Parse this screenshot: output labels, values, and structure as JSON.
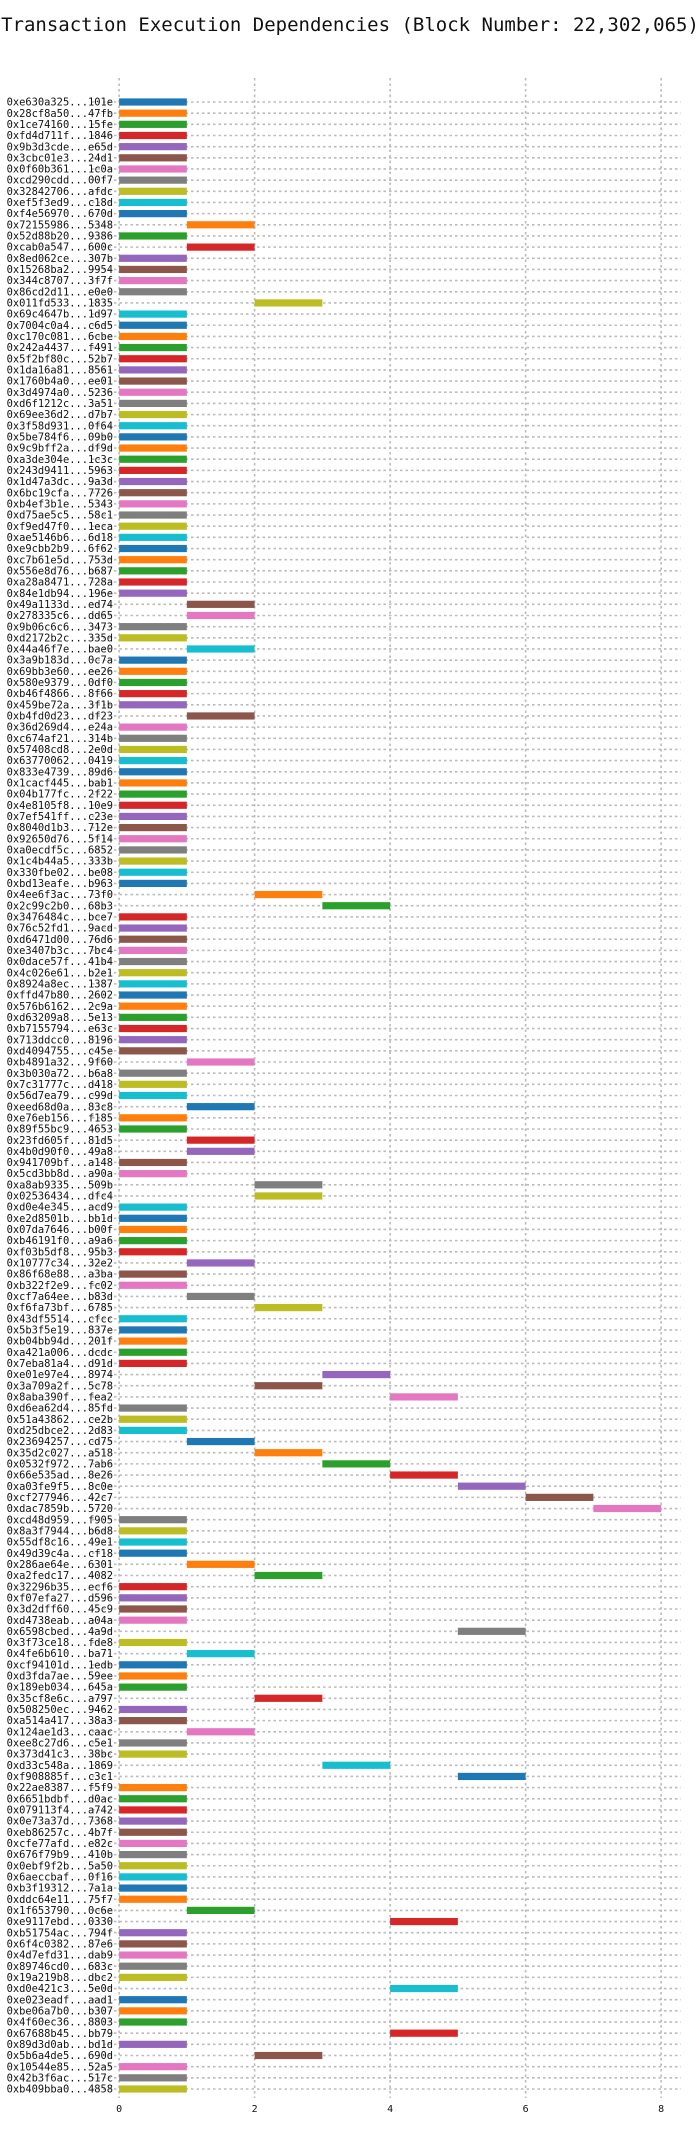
{
  "chart_data": {
    "type": "bar",
    "orientation": "horizontal-gantt",
    "title": "Transaction Execution Dependencies (Block Number: 22,302,065)",
    "xlabel": "",
    "ylabel": "",
    "xlim": [
      -0.4,
      8.5
    ],
    "xticks": [
      0,
      2,
      4,
      6,
      8
    ],
    "grid": true,
    "legend": "none",
    "palette": [
      "#1f77b4",
      "#ff7f0e",
      "#2ca02c",
      "#d62728",
      "#9467bd",
      "#8c564b",
      "#e377c2",
      "#7f7f7f",
      "#bcbd22",
      "#17becf"
    ],
    "transactions": [
      {
        "hash": "0xe630a325...101e",
        "start": 0,
        "end": 1
      },
      {
        "hash": "0x28cf8a50...47fb",
        "start": 0,
        "end": 1
      },
      {
        "hash": "0x1ce74160...15fe",
        "start": 0,
        "end": 1
      },
      {
        "hash": "0xfd4d711f...1846",
        "start": 0,
        "end": 1
      },
      {
        "hash": "0x9b3d3cde...e65d",
        "start": 0,
        "end": 1
      },
      {
        "hash": "0x3cbc01e3...24d1",
        "start": 0,
        "end": 1
      },
      {
        "hash": "0x0f60b361...1c0a",
        "start": 0,
        "end": 1
      },
      {
        "hash": "0xcd290cdd...00f7",
        "start": 0,
        "end": 1
      },
      {
        "hash": "0x32842706...afdc",
        "start": 0,
        "end": 1
      },
      {
        "hash": "0xef5f3ed9...c18d",
        "start": 0,
        "end": 1
      },
      {
        "hash": "0xf4e56970...670d",
        "start": 0,
        "end": 1
      },
      {
        "hash": "0x72155986...5348",
        "start": 1,
        "end": 2
      },
      {
        "hash": "0x52d88b20...9386",
        "start": 0,
        "end": 1
      },
      {
        "hash": "0xcab0a547...600c",
        "start": 1,
        "end": 2
      },
      {
        "hash": "0x8ed062ce...307b",
        "start": 0,
        "end": 1
      },
      {
        "hash": "0x15268ba2...9954",
        "start": 0,
        "end": 1
      },
      {
        "hash": "0x344c8707...3f7f",
        "start": 0,
        "end": 1
      },
      {
        "hash": "0x86cd2d11...e0e0",
        "start": 0,
        "end": 1
      },
      {
        "hash": "0x011fd533...1835",
        "start": 2,
        "end": 3
      },
      {
        "hash": "0x69c4647b...1d97",
        "start": 0,
        "end": 1
      },
      {
        "hash": "0x7004c0a4...c6d5",
        "start": 0,
        "end": 1
      },
      {
        "hash": "0xc170c081...6cbe",
        "start": 0,
        "end": 1
      },
      {
        "hash": "0x242a4437...f491",
        "start": 0,
        "end": 1
      },
      {
        "hash": "0x5f2bf80c...52b7",
        "start": 0,
        "end": 1
      },
      {
        "hash": "0x1da16a81...8561",
        "start": 0,
        "end": 1
      },
      {
        "hash": "0x1760b4a0...ee01",
        "start": 0,
        "end": 1
      },
      {
        "hash": "0x3d4974a0...5236",
        "start": 0,
        "end": 1
      },
      {
        "hash": "0xd6f1212c...3a51",
        "start": 0,
        "end": 1
      },
      {
        "hash": "0x69ee36d2...d7b7",
        "start": 0,
        "end": 1
      },
      {
        "hash": "0x3f58d931...0f64",
        "start": 0,
        "end": 1
      },
      {
        "hash": "0x5be784f6...09b0",
        "start": 0,
        "end": 1
      },
      {
        "hash": "0x9c9bff2a...df9d",
        "start": 0,
        "end": 1
      },
      {
        "hash": "0xa3de304e...1c3c",
        "start": 0,
        "end": 1
      },
      {
        "hash": "0x243d9411...5963",
        "start": 0,
        "end": 1
      },
      {
        "hash": "0x1d47a3dc...9a3d",
        "start": 0,
        "end": 1
      },
      {
        "hash": "0x6bc19cfa...7726",
        "start": 0,
        "end": 1
      },
      {
        "hash": "0xb4ef3b1e...5343",
        "start": 0,
        "end": 1
      },
      {
        "hash": "0xd75ae5c5...58c1",
        "start": 0,
        "end": 1
      },
      {
        "hash": "0xf9ed47f0...1eca",
        "start": 0,
        "end": 1
      },
      {
        "hash": "0xae5146b6...6d18",
        "start": 0,
        "end": 1
      },
      {
        "hash": "0xe9cbb2b9...6f62",
        "start": 0,
        "end": 1
      },
      {
        "hash": "0xc7b61e5d...753d",
        "start": 0,
        "end": 1
      },
      {
        "hash": "0x556e8d76...b687",
        "start": 0,
        "end": 1
      },
      {
        "hash": "0xa28a8471...728a",
        "start": 0,
        "end": 1
      },
      {
        "hash": "0x84e1db94...196e",
        "start": 0,
        "end": 1
      },
      {
        "hash": "0x49a1133d...ed74",
        "start": 1,
        "end": 2
      },
      {
        "hash": "0x278335c6...dd65",
        "start": 1,
        "end": 2
      },
      {
        "hash": "0x9b06c6c6...3473",
        "start": 0,
        "end": 1
      },
      {
        "hash": "0xd2172b2c...335d",
        "start": 0,
        "end": 1
      },
      {
        "hash": "0x44a46f7e...bae0",
        "start": 1,
        "end": 2
      },
      {
        "hash": "0x3a9b183d...0c7a",
        "start": 0,
        "end": 1
      },
      {
        "hash": "0x69bb3e60...ee26",
        "start": 0,
        "end": 1
      },
      {
        "hash": "0x580e9379...0df0",
        "start": 0,
        "end": 1
      },
      {
        "hash": "0xb46f4866...8f66",
        "start": 0,
        "end": 1
      },
      {
        "hash": "0x459be72a...3f1b",
        "start": 0,
        "end": 1
      },
      {
        "hash": "0xb4fd0d23...df23",
        "start": 1,
        "end": 2
      },
      {
        "hash": "0x36d269d4...e24a",
        "start": 0,
        "end": 1
      },
      {
        "hash": "0xc674af21...314b",
        "start": 0,
        "end": 1
      },
      {
        "hash": "0x57408cd8...2e0d",
        "start": 0,
        "end": 1
      },
      {
        "hash": "0x63770062...0419",
        "start": 0,
        "end": 1
      },
      {
        "hash": "0x833e4739...89d6",
        "start": 0,
        "end": 1
      },
      {
        "hash": "0x1cacf445...bab1",
        "start": 0,
        "end": 1
      },
      {
        "hash": "0x04b177fc...2f22",
        "start": 0,
        "end": 1
      },
      {
        "hash": "0x4e8105f8...10e9",
        "start": 0,
        "end": 1
      },
      {
        "hash": "0x7ef541ff...c23e",
        "start": 0,
        "end": 1
      },
      {
        "hash": "0x8040d1b3...712e",
        "start": 0,
        "end": 1
      },
      {
        "hash": "0x92650d76...5f14",
        "start": 0,
        "end": 1
      },
      {
        "hash": "0xa0ecdf5c...6852",
        "start": 0,
        "end": 1
      },
      {
        "hash": "0x1c4b44a5...333b",
        "start": 0,
        "end": 1
      },
      {
        "hash": "0x330fbe02...be08",
        "start": 0,
        "end": 1
      },
      {
        "hash": "0xbd13eafe...b963",
        "start": 0,
        "end": 1
      },
      {
        "hash": "0x4ee6f3ac...73f0",
        "start": 2,
        "end": 3
      },
      {
        "hash": "0x2c99c2b0...68b3",
        "start": 3,
        "end": 4
      },
      {
        "hash": "0x3476484c...bce7",
        "start": 0,
        "end": 1
      },
      {
        "hash": "0x76c52fd1...9acd",
        "start": 0,
        "end": 1
      },
      {
        "hash": "0xd6471d00...76d6",
        "start": 0,
        "end": 1
      },
      {
        "hash": "0xe3407b3c...7bc4",
        "start": 0,
        "end": 1
      },
      {
        "hash": "0x0dace57f...41b4",
        "start": 0,
        "end": 1
      },
      {
        "hash": "0x4c026e61...b2e1",
        "start": 0,
        "end": 1
      },
      {
        "hash": "0x8924a8ec...1387",
        "start": 0,
        "end": 1
      },
      {
        "hash": "0xffd47b80...2602",
        "start": 0,
        "end": 1
      },
      {
        "hash": "0x576b6162...2c9a",
        "start": 0,
        "end": 1
      },
      {
        "hash": "0xd63209a8...5e13",
        "start": 0,
        "end": 1
      },
      {
        "hash": "0xb7155794...e63c",
        "start": 0,
        "end": 1
      },
      {
        "hash": "0x713ddcc0...8196",
        "start": 0,
        "end": 1
      },
      {
        "hash": "0xd4094755...c45e",
        "start": 0,
        "end": 1
      },
      {
        "hash": "0xb4891a32...9f60",
        "start": 1,
        "end": 2
      },
      {
        "hash": "0x3b030a72...b6a8",
        "start": 0,
        "end": 1
      },
      {
        "hash": "0x7c31777c...d418",
        "start": 0,
        "end": 1
      },
      {
        "hash": "0x56d7ea79...c99d",
        "start": 0,
        "end": 1
      },
      {
        "hash": "0xeed68d0a...83c8",
        "start": 1,
        "end": 2
      },
      {
        "hash": "0xe76eb156...f185",
        "start": 0,
        "end": 1
      },
      {
        "hash": "0x89f55bc9...4653",
        "start": 0,
        "end": 1
      },
      {
        "hash": "0x23fd605f...81d5",
        "start": 1,
        "end": 2
      },
      {
        "hash": "0x4b0d90f0...49a8",
        "start": 1,
        "end": 2
      },
      {
        "hash": "0x941709bf...a148",
        "start": 0,
        "end": 1
      },
      {
        "hash": "0x5cd3bb8d...a90a",
        "start": 0,
        "end": 1
      },
      {
        "hash": "0xa8ab9335...509b",
        "start": 2,
        "end": 3
      },
      {
        "hash": "0x02536434...dfc4",
        "start": 2,
        "end": 3
      },
      {
        "hash": "0xd0e4e345...acd9",
        "start": 0,
        "end": 1
      },
      {
        "hash": "0xe2d8501b...bb1d",
        "start": 0,
        "end": 1
      },
      {
        "hash": "0x07da7646...b00f",
        "start": 0,
        "end": 1
      },
      {
        "hash": "0xb46191f0...a9a6",
        "start": 0,
        "end": 1
      },
      {
        "hash": "0xf03b5df8...95b3",
        "start": 0,
        "end": 1
      },
      {
        "hash": "0x10777c34...32e2",
        "start": 1,
        "end": 2
      },
      {
        "hash": "0x86f68e88...a3ba",
        "start": 0,
        "end": 1
      },
      {
        "hash": "0xb322f2e9...fc02",
        "start": 0,
        "end": 1
      },
      {
        "hash": "0xcf7a64ee...b83d",
        "start": 1,
        "end": 2
      },
      {
        "hash": "0xf6fa73bf...6785",
        "start": 2,
        "end": 3
      },
      {
        "hash": "0x43df5514...cfcc",
        "start": 0,
        "end": 1
      },
      {
        "hash": "0x5b3f5e19...837e",
        "start": 0,
        "end": 1
      },
      {
        "hash": "0xb04bb94d...201f",
        "start": 0,
        "end": 1
      },
      {
        "hash": "0xa421a006...dcdc",
        "start": 0,
        "end": 1
      },
      {
        "hash": "0x7eba81a4...d91d",
        "start": 0,
        "end": 1
      },
      {
        "hash": "0xe01e97e4...8974",
        "start": 3,
        "end": 4
      },
      {
        "hash": "0x3a709a2f...5c78",
        "start": 2,
        "end": 3
      },
      {
        "hash": "0x8aba390f...fea2",
        "start": 4,
        "end": 5
      },
      {
        "hash": "0xd6ea62d4...85fd",
        "start": 0,
        "end": 1
      },
      {
        "hash": "0x51a43862...ce2b",
        "start": 0,
        "end": 1
      },
      {
        "hash": "0xd25dbce2...2d83",
        "start": 0,
        "end": 1
      },
      {
        "hash": "0x23694257...cd75",
        "start": 1,
        "end": 2
      },
      {
        "hash": "0x35d2c027...a518",
        "start": 2,
        "end": 3
      },
      {
        "hash": "0x0532f972...7ab6",
        "start": 3,
        "end": 4
      },
      {
        "hash": "0x66e535ad...8e26",
        "start": 4,
        "end": 5
      },
      {
        "hash": "0xa03fe9f5...8c0e",
        "start": 5,
        "end": 6
      },
      {
        "hash": "0xcf277946...42c7",
        "start": 6,
        "end": 7
      },
      {
        "hash": "0xdac7859b...5720",
        "start": 7,
        "end": 8
      },
      {
        "hash": "0xcd48d959...f905",
        "start": 0,
        "end": 1
      },
      {
        "hash": "0x8a3f7944...b6d8",
        "start": 0,
        "end": 1
      },
      {
        "hash": "0x55df8c16...49e1",
        "start": 0,
        "end": 1
      },
      {
        "hash": "0x49d39c4a...cf18",
        "start": 0,
        "end": 1
      },
      {
        "hash": "0x286ae64e...6301",
        "start": 1,
        "end": 2
      },
      {
        "hash": "0xa2fedc17...4082",
        "start": 2,
        "end": 3
      },
      {
        "hash": "0x32296b35...ecf6",
        "start": 0,
        "end": 1
      },
      {
        "hash": "0xf07efa27...d596",
        "start": 0,
        "end": 1
      },
      {
        "hash": "0x3d2dff60...45c9",
        "start": 0,
        "end": 1
      },
      {
        "hash": "0xd4738eab...a04a",
        "start": 0,
        "end": 1
      },
      {
        "hash": "0x6598cbed...4a9d",
        "start": 5,
        "end": 6
      },
      {
        "hash": "0x3f73ce18...fde8",
        "start": 0,
        "end": 1
      },
      {
        "hash": "0x4fe6b610...ba71",
        "start": 1,
        "end": 2
      },
      {
        "hash": "0xcf94101d...1edb",
        "start": 0,
        "end": 1
      },
      {
        "hash": "0xd3fda7ae...59ee",
        "start": 0,
        "end": 1
      },
      {
        "hash": "0x189eb034...645a",
        "start": 0,
        "end": 1
      },
      {
        "hash": "0x35cf8e6c...a797",
        "start": 2,
        "end": 3
      },
      {
        "hash": "0x508250ec...9462",
        "start": 0,
        "end": 1
      },
      {
        "hash": "0xa514a417...38a3",
        "start": 0,
        "end": 1
      },
      {
        "hash": "0x124ae1d3...caac",
        "start": 1,
        "end": 2
      },
      {
        "hash": "0xee8c27d6...c5e1",
        "start": 0,
        "end": 1
      },
      {
        "hash": "0x373d41c3...38bc",
        "start": 0,
        "end": 1
      },
      {
        "hash": "0xd33c548a...1869",
        "start": 3,
        "end": 4
      },
      {
        "hash": "0xf908885f...c3c1",
        "start": 5,
        "end": 6
      },
      {
        "hash": "0x22ae8387...f5f9",
        "start": 0,
        "end": 1
      },
      {
        "hash": "0x6651bdbf...d0ac",
        "start": 0,
        "end": 1
      },
      {
        "hash": "0x079113f4...a742",
        "start": 0,
        "end": 1
      },
      {
        "hash": "0x0e73a37d...7368",
        "start": 0,
        "end": 1
      },
      {
        "hash": "0xeb86257c...4b7f",
        "start": 0,
        "end": 1
      },
      {
        "hash": "0xcfe77afd...e82c",
        "start": 0,
        "end": 1
      },
      {
        "hash": "0x676f79b9...410b",
        "start": 0,
        "end": 1
      },
      {
        "hash": "0x0ebf9f2b...5a50",
        "start": 0,
        "end": 1
      },
      {
        "hash": "0x6aeccbaf...0f16",
        "start": 0,
        "end": 1
      },
      {
        "hash": "0xb3f19312...7a1a",
        "start": 0,
        "end": 1
      },
      {
        "hash": "0xddc64e11...75f7",
        "start": 0,
        "end": 1
      },
      {
        "hash": "0x1f653790...0c6e",
        "start": 1,
        "end": 2
      },
      {
        "hash": "0xe9117ebd...0330",
        "start": 4,
        "end": 5
      },
      {
        "hash": "0xb51754ac...794f",
        "start": 0,
        "end": 1
      },
      {
        "hash": "0x6f4c0382...87e6",
        "start": 0,
        "end": 1
      },
      {
        "hash": "0x4d7efd31...dab9",
        "start": 0,
        "end": 1
      },
      {
        "hash": "0x89746cd0...683c",
        "start": 0,
        "end": 1
      },
      {
        "hash": "0x19a219b8...dbc2",
        "start": 0,
        "end": 1
      },
      {
        "hash": "0xd0e421c3...5e0d",
        "start": 4,
        "end": 5
      },
      {
        "hash": "0xe023eadf...aad1",
        "start": 0,
        "end": 1
      },
      {
        "hash": "0xbe06a7b0...b307",
        "start": 0,
        "end": 1
      },
      {
        "hash": "0x4f60ec36...8803",
        "start": 0,
        "end": 1
      },
      {
        "hash": "0x67688b45...bb79",
        "start": 4,
        "end": 5
      },
      {
        "hash": "0x89d3d0ab...bd1d",
        "start": 0,
        "end": 1
      },
      {
        "hash": "0x5b6a4de5...690d",
        "start": 2,
        "end": 3
      },
      {
        "hash": "0x10544e85...52a5",
        "start": 0,
        "end": 1
      },
      {
        "hash": "0x42b3f6ac...517c",
        "start": 0,
        "end": 1
      },
      {
        "hash": "0xb409bba0...4858",
        "start": 0,
        "end": 1
      }
    ]
  }
}
